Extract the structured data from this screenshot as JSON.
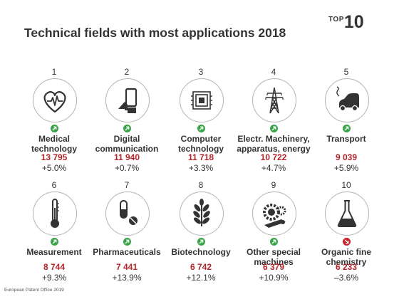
{
  "title": "Technical fields with most applications 2018",
  "badge": {
    "prefix": "TOP",
    "number": "10"
  },
  "footer": "European Patent Office 2019",
  "colors": {
    "up": "#3aa44a",
    "down": "#c8242a",
    "value": "#b3242b",
    "icon": "#333333"
  },
  "chart_data": {
    "type": "table",
    "title": "Technical fields with most applications 2018",
    "columns": [
      "rank",
      "field",
      "applications",
      "change"
    ],
    "rows": [
      {
        "rank": "1",
        "field_lines": [
          "Medical",
          "technology"
        ],
        "applications": "13 795",
        "change": "+5.0%",
        "trend": "up",
        "icon": "heart-pulse-icon"
      },
      {
        "rank": "2",
        "field_lines": [
          "Digital",
          "communication"
        ],
        "applications": "11 940",
        "change": "+0.7%",
        "trend": "up",
        "icon": "tablet-hand-icon"
      },
      {
        "rank": "3",
        "field_lines": [
          "Computer",
          "technology"
        ],
        "applications": "11 718",
        "change": "+3.3%",
        "trend": "up",
        "icon": "chip-icon"
      },
      {
        "rank": "4",
        "field_lines": [
          "Electr. Machinery,",
          "apparatus, energy"
        ],
        "applications": "10 722",
        "change": "+4.7%",
        "trend": "up",
        "icon": "power-pylon-icon"
      },
      {
        "rank": "5",
        "field_lines": [
          "Transport"
        ],
        "applications": "9 039",
        "change": "+5.9%",
        "trend": "up",
        "icon": "electric-car-icon"
      },
      {
        "rank": "6",
        "field_lines": [
          "Measurement"
        ],
        "applications": "8 744",
        "change": "+9.3%",
        "trend": "up",
        "icon": "thermometer-icon"
      },
      {
        "rank": "7",
        "field_lines": [
          "Pharmaceuticals"
        ],
        "applications": "7 441",
        "change": "+13.9%",
        "trend": "up",
        "icon": "pills-icon"
      },
      {
        "rank": "8",
        "field_lines": [
          "Biotechnology"
        ],
        "applications": "6 742",
        "change": "+12.1%",
        "trend": "up",
        "icon": "plant-icon"
      },
      {
        "rank": "9",
        "field_lines": [
          "Other special",
          "machines"
        ],
        "applications": "6 379",
        "change": "+10.9%",
        "trend": "up",
        "icon": "machine-gears-icon"
      },
      {
        "rank": "10",
        "field_lines": [
          "Organic fine",
          "chemistry"
        ],
        "applications": "6 233",
        "change": "–3.6%",
        "trend": "down",
        "icon": "flask-icon"
      }
    ]
  }
}
